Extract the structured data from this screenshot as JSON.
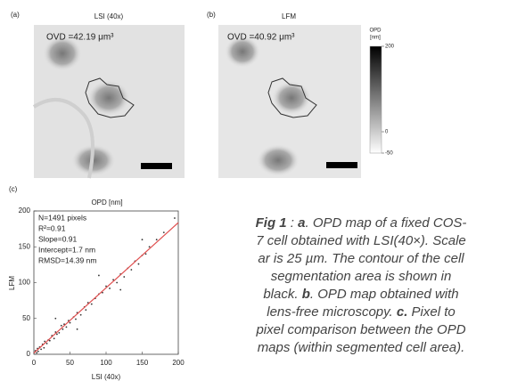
{
  "panels": [
    {
      "label": "(a)",
      "title": "LSI (40x)",
      "annotation": "OVD =42.19 μm³"
    },
    {
      "label": "(b)",
      "title": "LFM",
      "annotation": "OVD =40.92 μm³"
    }
  ],
  "colorbar": {
    "title": [
      "OPD",
      "[nm]"
    ],
    "lim": [
      -50,
      200
    ],
    "ticks": [
      200,
      0,
      -50
    ]
  },
  "chart_data": {
    "type": "scatter",
    "label": "(c)",
    "title": "OPD [nm]",
    "x_label": "LSI (40x)",
    "y_label": "LFM",
    "xlim": [
      0,
      200
    ],
    "ylim": [
      0,
      200
    ],
    "xticks": [
      0,
      50,
      100,
      150,
      200
    ],
    "yticks": [
      0,
      50,
      100,
      150,
      200
    ],
    "stats": [
      "N=1491 pixels",
      "R²=0.91",
      "Slope=0.91",
      "Intercept=1.7 nm",
      "RMSD=14.39 nm"
    ],
    "fit": {
      "slope": 0.91,
      "intercept": 1.7,
      "color": "#e05050"
    },
    "color": "#333333",
    "x": [
      2,
      4,
      5,
      6,
      8,
      10,
      12,
      14,
      15,
      18,
      20,
      22,
      25,
      28,
      30,
      32,
      35,
      38,
      40,
      42,
      45,
      48,
      50,
      55,
      58,
      60,
      65,
      70,
      72,
      75,
      80,
      85,
      90,
      95,
      100,
      105,
      110,
      115,
      120,
      125,
      130,
      135,
      140,
      145,
      150,
      155,
      160,
      170,
      180,
      195,
      30,
      60,
      90,
      120,
      150
    ],
    "y": [
      5,
      2,
      8,
      4,
      10,
      7,
      14,
      9,
      18,
      15,
      20,
      19,
      26,
      22,
      31,
      28,
      30,
      40,
      35,
      42,
      38,
      47,
      44,
      52,
      49,
      58,
      55,
      66,
      62,
      72,
      70,
      78,
      84,
      86,
      95,
      92,
      104,
      100,
      112,
      108,
      120,
      118,
      130,
      126,
      138,
      140,
      150,
      160,
      170,
      190,
      50,
      35,
      110,
      90,
      160
    ]
  },
  "caption": [
    [
      {
        "text": "Fig 1",
        "bold": true
      },
      " : ",
      {
        "text": "a",
        "bold": true
      },
      ". OPD map of a fixed COS-"
    ],
    [
      "7 cell obtained with LSI(40×). Scale"
    ],
    [
      "ar is 25 µm. The contour of the cell"
    ],
    [
      "segmentation area is shown in"
    ],
    [
      "black. ",
      {
        "text": "b",
        "bold": true
      },
      ". OPD map obtained with"
    ],
    [
      "lens-free microscopy. ",
      {
        "text": "c.",
        "bold": true
      },
      " Pixel to"
    ],
    [
      "pixel comparison between the OPD"
    ],
    [
      "maps (within segmented cell area)."
    ]
  ]
}
